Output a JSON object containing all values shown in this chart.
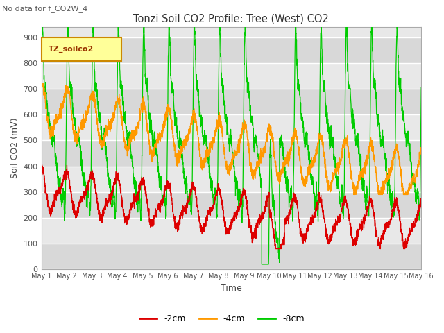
{
  "title": "Tonzi Soil CO2 Profile: Tree (West) CO2",
  "subtitle": "No data for f_CO2W_4",
  "ylabel": "Soil CO2 (mV)",
  "xlabel": "Time",
  "legend_label": "TZ_soilco2",
  "series_labels": [
    "-2cm",
    "-4cm",
    "-8cm"
  ],
  "series_colors": [
    "#dd0000",
    "#ff9900",
    "#00cc00"
  ],
  "ylim": [
    0,
    940
  ],
  "yticks": [
    0,
    100,
    200,
    300,
    400,
    500,
    600,
    700,
    800,
    900
  ],
  "xtick_labels": [
    "May 1",
    "May 2",
    "May 3",
    "May 4",
    "May 5",
    "May 6",
    "May 7",
    "May 8",
    "May 9",
    "May 10",
    "May 11",
    "May 12",
    "May 13",
    "May 14",
    "May 15",
    "May 16"
  ],
  "bg_color": "#ffffff",
  "plot_bg_color": "#e8e8e8",
  "grid_color": "#ffffff",
  "band_colors": [
    "#d8d8d8",
    "#e8e8e8"
  ],
  "n_points": 3000,
  "days": 15
}
